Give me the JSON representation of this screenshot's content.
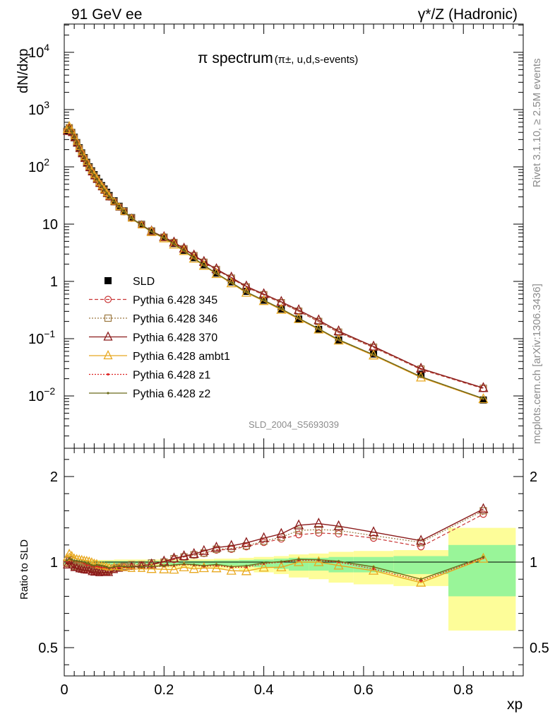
{
  "header": {
    "left": "91 GeV ee",
    "right": "γ*/Z (Hadronic)"
  },
  "side_text": {
    "rivet": "Rivet 3.1.10, ≥ 2.5M events",
    "mcplots": "mcplots.cern.ch [arXiv:1306.3436]"
  },
  "chart_data": [
    {
      "type": "scatter",
      "title": "π spectrum",
      "title_suffix": "(π±, u,d,s-events)",
      "ylabel": "dN/dxp",
      "yscale": "log",
      "ylim": [
        0.001,
        30000
      ],
      "xlim": [
        0,
        0.92
      ],
      "yticks": [
        "10−2",
        "10−1",
        "1",
        "10",
        "102",
        "103",
        "104"
      ],
      "watermark": "SLD_2004_S5693039",
      "legend_position": "mid-left",
      "x": [
        0.005,
        0.01,
        0.015,
        0.02,
        0.025,
        0.03,
        0.035,
        0.04,
        0.045,
        0.05,
        0.055,
        0.06,
        0.065,
        0.07,
        0.075,
        0.08,
        0.085,
        0.09,
        0.1,
        0.11,
        0.12,
        0.135,
        0.155,
        0.175,
        0.2,
        0.22,
        0.24,
        0.26,
        0.28,
        0.305,
        0.335,
        0.365,
        0.4,
        0.435,
        0.47,
        0.51,
        0.55,
        0.62,
        0.715,
        0.84
      ],
      "series": [
        {
          "name": "SLD",
          "color": "#000000",
          "marker": "filled-square",
          "values": [
            420,
            470,
            400,
            330,
            265,
            215,
            175,
            145,
            120,
            100,
            85,
            73,
            63,
            54,
            47,
            41,
            36,
            31.5,
            25.5,
            20.5,
            17,
            13,
            9.9,
            7.6,
            5.9,
            4.6,
            3.5,
            2.6,
            1.95,
            1.4,
            0.98,
            0.67,
            0.47,
            0.33,
            0.22,
            0.145,
            0.095,
            0.054,
            0.024,
            0.0085
          ]
        },
        {
          "name": "Pythia 6.428 345",
          "color": "#c93535",
          "marker": "open-circle",
          "line": "dashed",
          "values": [
            415,
            480,
            395,
            320,
            258,
            208,
            169,
            140,
            115,
            96,
            81,
            69,
            60,
            51,
            44.5,
            39,
            34,
            29.8,
            24.5,
            19.8,
            16.5,
            12.7,
            9.7,
            7.5,
            5.9,
            4.75,
            3.7,
            2.8,
            2.15,
            1.6,
            1.13,
            0.79,
            0.58,
            0.42,
            0.3,
            0.198,
            0.128,
            0.07,
            0.029,
            0.0134
          ]
        },
        {
          "name": "Pythia 6.428 346",
          "color": "#9c7840",
          "marker": "open-square",
          "line": "dotted",
          "values": [
            418,
            482,
            397,
            322,
            259,
            209,
            170,
            141,
            116,
            97,
            82,
            70,
            60.5,
            51.5,
            45,
            39.3,
            34.3,
            30,
            24.6,
            19.9,
            16.6,
            12.8,
            9.75,
            7.55,
            5.92,
            4.78,
            3.72,
            2.82,
            2.16,
            1.61,
            1.14,
            0.8,
            0.585,
            0.425,
            0.302,
            0.2,
            0.13,
            0.071,
            0.0295,
            0.0136
          ]
        },
        {
          "name": "Pythia 6.428 370",
          "color": "#8b1a1a",
          "marker": "open-triangle",
          "line": "solid",
          "values": [
            410,
            475,
            392,
            318,
            256,
            206,
            167,
            138,
            114,
            95,
            80,
            68.5,
            59.5,
            50.5,
            44,
            38.6,
            33.8,
            29.5,
            24.3,
            19.7,
            16.4,
            12.65,
            9.68,
            7.5,
            5.95,
            4.8,
            3.75,
            2.85,
            2.2,
            1.64,
            1.17,
            0.82,
            0.6,
            0.44,
            0.315,
            0.21,
            0.135,
            0.073,
            0.03,
            0.0138
          ]
        },
        {
          "name": "Pythia 6.428 ambt1",
          "color": "#e8a820",
          "marker": "open-triangle",
          "line": "solid",
          "values": [
            440,
            520,
            430,
            345,
            275,
            222,
            180,
            148,
            122,
            101,
            85,
            72.5,
            62.5,
            53,
            46,
            40,
            35,
            30.5,
            24.8,
            19.9,
            16.4,
            12.5,
            9.5,
            7.3,
            5.65,
            4.4,
            3.4,
            2.5,
            1.88,
            1.35,
            0.93,
            0.635,
            0.455,
            0.32,
            0.22,
            0.145,
            0.093,
            0.051,
            0.021,
            0.0088
          ]
        },
        {
          "name": "Pythia 6.428 z1",
          "color": "#dd2222",
          "marker": "dot",
          "line": "dotted",
          "values": [
            425,
            490,
            410,
            335,
            268,
            216,
            175,
            144,
            118,
            98.5,
            83,
            71,
            61.5,
            52.5,
            45.5,
            39.8,
            34.8,
            30.3,
            24.7,
            19.9,
            16.5,
            12.6,
            9.6,
            7.4,
            5.75,
            4.5,
            3.45,
            2.55,
            1.9,
            1.37,
            0.95,
            0.65,
            0.465,
            0.33,
            0.225,
            0.148,
            0.095,
            0.052,
            0.0215,
            0.0089
          ]
        },
        {
          "name": "Pythia 6.428 z2",
          "color": "#6b6b1a",
          "marker": "dot",
          "line": "solid",
          "values": [
            428,
            492,
            412,
            336,
            269,
            217,
            176,
            145,
            119,
            99,
            83.5,
            71.5,
            62,
            53,
            46,
            40,
            35,
            30.4,
            24.8,
            20,
            16.55,
            12.65,
            9.62,
            7.42,
            5.77,
            4.52,
            3.46,
            2.56,
            1.91,
            1.38,
            0.955,
            0.655,
            0.468,
            0.332,
            0.227,
            0.149,
            0.096,
            0.0525,
            0.0217,
            0.009
          ]
        }
      ]
    },
    {
      "type": "line",
      "ylabel": "Ratio to SLD",
      "xlabel": "xp",
      "xlim": [
        0,
        0.92
      ],
      "ylim": [
        0.35,
        2.3
      ],
      "yticks": [
        "0.5",
        "1",
        "2"
      ],
      "xticks": [
        "0",
        "0.2",
        "0.4",
        "0.6",
        "0.8"
      ],
      "band_bins": [
        [
          0.0,
          0.1
        ],
        [
          0.1,
          0.2
        ],
        [
          0.2,
          0.3
        ],
        [
          0.3,
          0.35
        ],
        [
          0.35,
          0.38
        ],
        [
          0.38,
          0.42
        ],
        [
          0.42,
          0.45
        ],
        [
          0.45,
          0.49
        ],
        [
          0.49,
          0.53
        ],
        [
          0.53,
          0.58
        ],
        [
          0.58,
          0.66
        ],
        [
          0.66,
          0.77
        ],
        [
          0.77,
          0.905
        ]
      ],
      "band_stat": [
        0.012,
        0.012,
        0.015,
        0.02,
        0.025,
        0.03,
        0.04,
        0.05,
        0.05,
        0.06,
        0.06,
        0.07,
        0.2
      ],
      "band_total": [
        0.025,
        0.03,
        0.035,
        0.04,
        0.05,
        0.06,
        0.07,
        0.09,
        0.1,
        0.12,
        0.13,
        0.14,
        0.4
      ],
      "band_colors": {
        "stat": "#99f599",
        "total": "#fdfd99"
      },
      "x": [
        0.005,
        0.01,
        0.015,
        0.02,
        0.025,
        0.03,
        0.035,
        0.04,
        0.045,
        0.05,
        0.055,
        0.06,
        0.065,
        0.07,
        0.075,
        0.08,
        0.085,
        0.09,
        0.1,
        0.11,
        0.12,
        0.135,
        0.155,
        0.175,
        0.2,
        0.22,
        0.24,
        0.26,
        0.28,
        0.305,
        0.335,
        0.365,
        0.4,
        0.435,
        0.47,
        0.51,
        0.55,
        0.62,
        0.715,
        0.84
      ],
      "series": [
        {
          "name": "Pythia 6.428 345",
          "color": "#c93535",
          "marker": "open-circle",
          "line": "dashed",
          "values": [
            0.99,
            1.02,
            0.99,
            0.97,
            0.975,
            0.97,
            0.965,
            0.965,
            0.96,
            0.96,
            0.955,
            0.95,
            0.95,
            0.945,
            0.945,
            0.95,
            0.945,
            0.945,
            0.96,
            0.965,
            0.97,
            0.975,
            0.98,
            0.985,
            1.0,
            1.03,
            1.06,
            1.08,
            1.1,
            1.14,
            1.15,
            1.18,
            1.23,
            1.27,
            1.32,
            1.34,
            1.33,
            1.28,
            1.18,
            1.56
          ]
        },
        {
          "name": "Pythia 6.428 346",
          "color": "#9c7840",
          "marker": "open-square",
          "line": "dotted",
          "values": [
            0.995,
            1.025,
            0.993,
            0.975,
            0.978,
            0.972,
            0.97,
            0.972,
            0.967,
            0.97,
            0.965,
            0.96,
            0.96,
            0.953,
            0.957,
            0.958,
            0.953,
            0.952,
            0.965,
            0.97,
            0.975,
            0.985,
            0.985,
            0.995,
            1.0,
            1.04,
            1.06,
            1.085,
            1.105,
            1.15,
            1.16,
            1.19,
            1.245,
            1.29,
            1.37,
            1.38,
            1.37,
            1.31,
            1.23,
            1.6
          ]
        },
        {
          "name": "Pythia 6.428 370",
          "color": "#8b1a1a",
          "marker": "open-triangle",
          "line": "solid",
          "values": [
            0.98,
            1.01,
            0.98,
            0.965,
            0.966,
            0.958,
            0.955,
            0.952,
            0.95,
            0.95,
            0.941,
            0.938,
            0.944,
            0.935,
            0.936,
            0.94,
            0.939,
            0.936,
            0.953,
            0.961,
            0.965,
            0.973,
            0.978,
            0.987,
            1.008,
            1.043,
            1.07,
            1.095,
            1.13,
            1.17,
            1.19,
            1.225,
            1.28,
            1.33,
            1.43,
            1.45,
            1.42,
            1.35,
            1.25,
            1.62
          ]
        },
        {
          "name": "Pythia 6.428 ambt1",
          "color": "#e8a820",
          "marker": "open-triangle",
          "line": "solid",
          "values": [
            1.05,
            1.1,
            1.075,
            1.045,
            1.038,
            1.032,
            1.028,
            1.02,
            1.017,
            1.01,
            1.0,
            0.993,
            0.99,
            0.98,
            0.978,
            0.975,
            0.972,
            0.968,
            0.972,
            0.97,
            0.965,
            0.96,
            0.96,
            0.96,
            0.958,
            0.956,
            0.97,
            0.96,
            0.965,
            0.964,
            0.95,
            0.947,
            0.968,
            0.97,
            1.0,
            1.0,
            0.98,
            0.95,
            0.88,
            1.04
          ]
        },
        {
          "name": "Pythia 6.428 z1",
          "color": "#dd2222",
          "marker": "dot",
          "line": "dotted",
          "values": [
            1.01,
            1.04,
            1.025,
            1.015,
            1.01,
            1.005,
            1.0,
            0.993,
            0.983,
            0.985,
            0.976,
            0.973,
            0.976,
            0.972,
            0.968,
            0.97,
            0.967,
            0.962,
            0.969,
            0.971,
            0.971,
            0.969,
            0.97,
            0.974,
            0.975,
            0.978,
            0.986,
            0.981,
            0.974,
            0.979,
            0.969,
            0.97,
            0.99,
            1.0,
            1.02,
            1.02,
            1.0,
            0.96,
            0.89,
            1.05
          ]
        },
        {
          "name": "Pythia 6.428 z2",
          "color": "#6b6b1a",
          "marker": "dot",
          "line": "solid",
          "values": [
            1.02,
            1.045,
            1.03,
            1.018,
            1.015,
            1.009,
            1.006,
            1.0,
            0.992,
            0.99,
            0.982,
            0.979,
            0.984,
            0.981,
            0.979,
            0.976,
            0.972,
            0.965,
            0.973,
            0.976,
            0.974,
            0.973,
            0.972,
            0.976,
            0.978,
            0.983,
            0.989,
            0.985,
            0.979,
            0.986,
            0.974,
            0.978,
            0.996,
            1.006,
            1.032,
            1.028,
            1.01,
            0.972,
            0.9,
            1.06
          ]
        }
      ]
    }
  ]
}
